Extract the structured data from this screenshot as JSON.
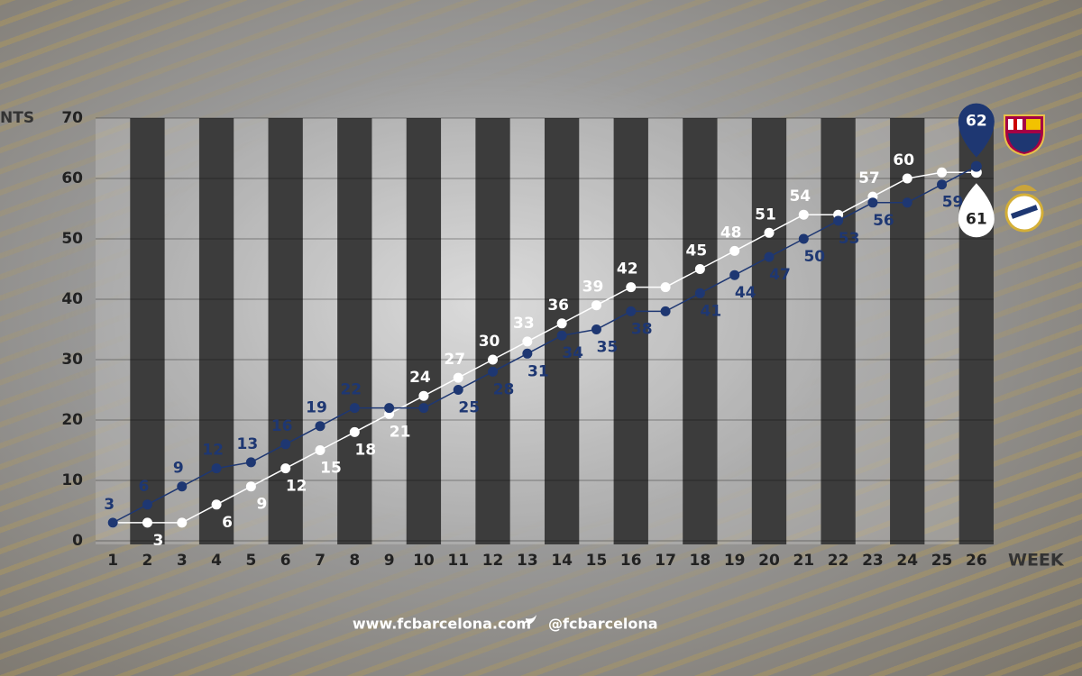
{
  "chart_data": {
    "type": "line",
    "x_label": "WEEK",
    "y_label": "NTS",
    "categories": [
      "1",
      "2",
      "3",
      "4",
      "5",
      "6",
      "7",
      "8",
      "9",
      "10",
      "11",
      "12",
      "13",
      "14",
      "15",
      "16",
      "17",
      "18",
      "19",
      "20",
      "21",
      "22",
      "23",
      "24",
      "25",
      "26"
    ],
    "series": [
      {
        "name": "FC Barcelona",
        "color": "#1e3772",
        "values": [
          3,
          6,
          9,
          12,
          13,
          16,
          19,
          22,
          22,
          22,
          25,
          28,
          31,
          34,
          35,
          38,
          38,
          41,
          44,
          47,
          50,
          53,
          56,
          56,
          59,
          62
        ],
        "value_labels": [
          "3",
          "6",
          "9",
          "12",
          "13",
          "16",
          "19",
          "22",
          null,
          null,
          "25",
          "28",
          "31",
          "34",
          "35",
          "38",
          null,
          "41",
          "44",
          "47",
          "50",
          "53",
          "56",
          null,
          "59",
          "62"
        ]
      },
      {
        "name": "Real Madrid",
        "color": "#ffffff",
        "values": [
          3,
          3,
          3,
          6,
          9,
          12,
          15,
          18,
          21,
          24,
          27,
          30,
          33,
          36,
          39,
          42,
          42,
          45,
          48,
          51,
          54,
          54,
          57,
          60,
          61,
          61
        ],
        "value_labels": [
          null,
          "3",
          null,
          "6",
          "9",
          "12",
          "15",
          "18",
          "21",
          "24",
          "27",
          "30",
          "33",
          "36",
          "39",
          "42",
          null,
          "45",
          "48",
          "51",
          "54",
          null,
          "57",
          "60",
          null,
          "61"
        ]
      }
    ],
    "ylim": [
      0,
      70
    ],
    "yticks": [
      0,
      10,
      20,
      30,
      40,
      50,
      60,
      70
    ],
    "grid": true,
    "footer": {
      "site": "www.fcbarcelona.com",
      "handle": "@fcbarcelona"
    }
  }
}
